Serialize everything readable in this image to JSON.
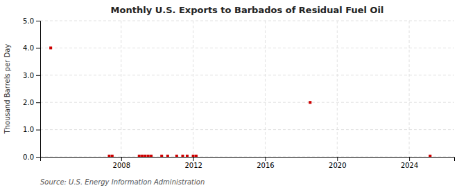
{
  "chart_data": {
    "type": "scatter",
    "title": "Monthly U.S. Exports to Barbados of Residual Fuel Oil",
    "ylabel": "Thousand Barrels per Day",
    "source": "Source: U.S. Energy Information Administration",
    "x": [
      2004.0833333333333,
      2007.3333333333333,
      2007.5,
      2009,
      2009.1666666666667,
      2009.3333333333333,
      2009.5,
      2009.6666666666667,
      2010.25,
      2010.5833333333333,
      2011.0833333333333,
      2011.4166666666667,
      2011.6666666666667,
      2012,
      2012.1666666666667,
      2018.5,
      2025.1666666666667
    ],
    "values": [
      4.0,
      0.03,
      0.03,
      0.03,
      0.03,
      0.03,
      0.03,
      0.03,
      0.03,
      0.03,
      0.03,
      0.03,
      0.03,
      0.03,
      0.03,
      2.0,
      0.03
    ],
    "color": "#cc0000",
    "marker": "square",
    "xlim": [
      2003.5,
      2026.5
    ],
    "xticks": [
      2008,
      2012,
      2016,
      2020,
      2024
    ],
    "ylim": [
      0.0,
      5.0
    ],
    "yticks": [
      {
        "value": 0.0,
        "label": "0.0"
      },
      {
        "value": 1.0,
        "label": "1.0"
      },
      {
        "value": 2.0,
        "label": "2.0"
      },
      {
        "value": 3.0,
        "label": "3.0"
      },
      {
        "value": 4.0,
        "label": "4.0"
      },
      {
        "value": 5.0,
        "label": "5.0"
      }
    ],
    "grid": true
  }
}
